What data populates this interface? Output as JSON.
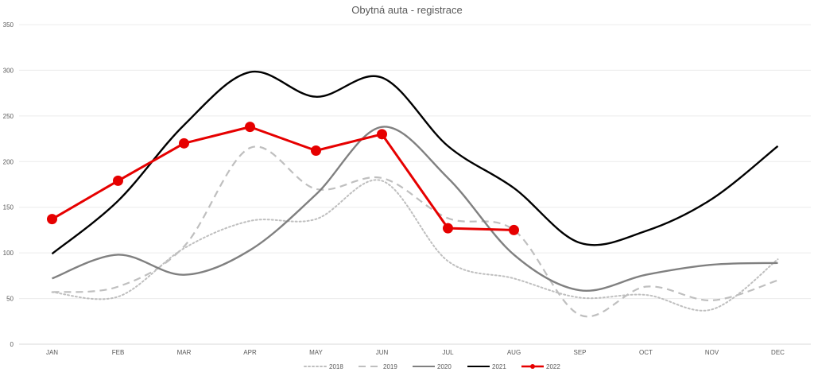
{
  "chart_data": {
    "type": "line",
    "title": "Obytná auta - registrace",
    "xlabel": "",
    "ylabel": "",
    "categories": [
      "JAN",
      "FEB",
      "MAR",
      "APR",
      "MAY",
      "JUN",
      "JUL",
      "AUG",
      "SEP",
      "OCT",
      "NOV",
      "DEC"
    ],
    "ylim": [
      0,
      350
    ],
    "yticks": [
      "0",
      "50",
      "100",
      "150",
      "200",
      "250",
      "300",
      "350"
    ],
    "grid": true,
    "legend": "bottom",
    "series": [
      {
        "name": "2018",
        "color": "#bfbfbf",
        "style": "dotted",
        "smooth": true,
        "markers": false,
        "values": [
          57,
          52,
          105,
          135,
          137,
          179,
          91,
          72,
          51,
          54,
          38,
          93
        ]
      },
      {
        "name": "2019",
        "color": "#bfbfbf",
        "style": "dashed",
        "smooth": true,
        "markers": false,
        "values": [
          57,
          63,
          107,
          215,
          170,
          182,
          138,
          125,
          32,
          63,
          48,
          70
        ]
      },
      {
        "name": "2020",
        "color": "#808080",
        "style": "solid",
        "smooth": true,
        "markers": false,
        "values": [
          72,
          98,
          76,
          103,
          164,
          238,
          182,
          98,
          59,
          76,
          87,
          89
        ]
      },
      {
        "name": "2021",
        "color": "#000000",
        "style": "solid",
        "smooth": true,
        "markers": false,
        "values": [
          99,
          157,
          240,
          298,
          271,
          292,
          217,
          171,
          111,
          124,
          159,
          217
        ]
      },
      {
        "name": "2022",
        "color": "#e60000",
        "style": "solid",
        "smooth": false,
        "markers": true,
        "values": [
          137,
          179,
          220,
          238,
          212,
          230,
          127,
          125,
          null,
          null,
          null,
          null
        ]
      }
    ]
  }
}
